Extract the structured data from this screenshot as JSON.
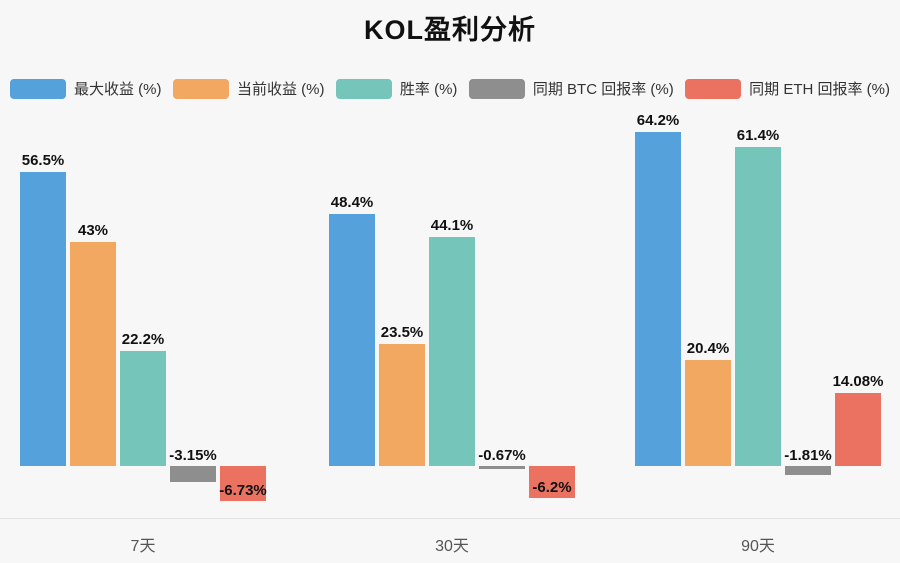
{
  "title": "KOL盈利分析",
  "chart_data": {
    "type": "bar",
    "title": "KOL盈利分析",
    "categories": [
      "7天",
      "30天",
      "90天"
    ],
    "series": [
      {
        "name": "最大收益 (%)",
        "color": "#55A1DC",
        "values": [
          56.5,
          48.4,
          64.2
        ]
      },
      {
        "name": "当前收益 (%)",
        "color": "#F2A860",
        "values": [
          43,
          23.5,
          20.4
        ]
      },
      {
        "name": "胜率 (%)",
        "color": "#76C5BB",
        "values": [
          22.2,
          44.1,
          61.4
        ]
      },
      {
        "name": "同期 BTC 回报率 (%)",
        "color": "#8E8E8E",
        "values": [
          -3.15,
          -0.67,
          -1.81
        ]
      },
      {
        "name": "同期 ETH 回报率 (%)",
        "color": "#EB7160",
        "values": [
          -6.73,
          -6.2,
          14.08
        ]
      }
    ],
    "value_labels": [
      [
        "56.5%",
        "48.4%",
        "64.2%"
      ],
      [
        "43%",
        "23.5%",
        "20.4%"
      ],
      [
        "22.2%",
        "44.1%",
        "61.4%"
      ],
      [
        "-3.15%",
        "-0.67%",
        "-1.81%"
      ],
      [
        "-6.73%",
        "-6.2%",
        "14.08%"
      ]
    ],
    "ylim": [
      -10,
      70
    ],
    "grid": false,
    "legend_position": "top",
    "value_label_format": "{value}%",
    "colors": {
      "background": "#f7f7f8",
      "axis_line": "#e3e3e5",
      "label_text": "#111111",
      "category_text": "#555555",
      "legend_text": "#333333"
    }
  }
}
